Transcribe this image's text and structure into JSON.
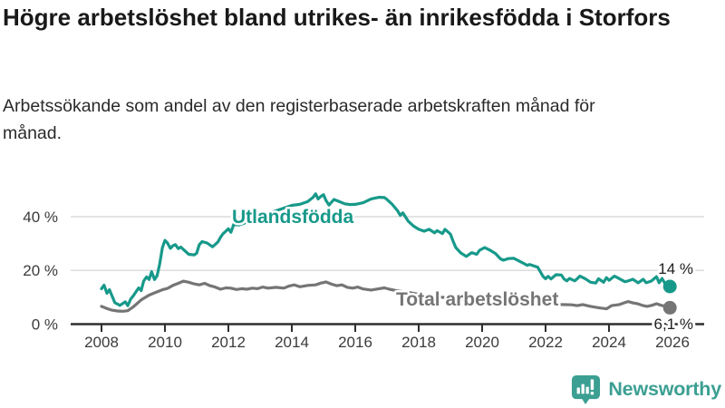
{
  "header": {
    "title": "Högre arbetslöshet bland utrikes- än inrikesfödda i Storfors",
    "subtitle": "Arbetssökande som andel av den registerbaserade arbetskraften månad för månad."
  },
  "footer": {
    "brand": "Newsworthy",
    "brand_color": "#3b9f92",
    "icon": "newsworthy-chart-bubble-icon"
  },
  "chart_data": {
    "type": "line",
    "title": "Högre arbetslöshet bland utrikes- än inrikesfödda i Storfors",
    "subtitle": "Arbetssökande som andel av den registerbaserade arbetskraften månad för månad.",
    "unit": "%",
    "grid": true,
    "x_axis": {
      "ticks": [
        2008,
        2010,
        2012,
        2014,
        2016,
        2018,
        2020,
        2022,
        2024,
        2026
      ],
      "range": [
        2007.2,
        2027
      ]
    },
    "y_axis": {
      "ticks": [
        {
          "value": 0,
          "label": "0 %"
        },
        {
          "value": 20,
          "label": "20 %"
        },
        {
          "value": 40,
          "label": "40 %"
        }
      ],
      "range": [
        0,
        50
      ]
    },
    "colors": {
      "grid": "#dcdcdc",
      "axis": "#2e2e2e"
    },
    "series": [
      {
        "name": "Utlandsfödda",
        "color": "#17998a",
        "end_label": "14 %",
        "last_value": 14,
        "points": [
          [
            2008.0,
            13.2
          ],
          [
            2008.08,
            14.5
          ],
          [
            2008.17,
            11.5
          ],
          [
            2008.25,
            12.8
          ],
          [
            2008.42,
            8.0
          ],
          [
            2008.58,
            7.0
          ],
          [
            2008.75,
            8.3
          ],
          [
            2008.83,
            6.9
          ],
          [
            2008.92,
            9.3
          ],
          [
            2009.0,
            10.5
          ],
          [
            2009.17,
            13.5
          ],
          [
            2009.25,
            12.5
          ],
          [
            2009.33,
            16.0
          ],
          [
            2009.42,
            17.6
          ],
          [
            2009.5,
            16.6
          ],
          [
            2009.58,
            19.5
          ],
          [
            2009.67,
            16.6
          ],
          [
            2009.75,
            18.0
          ],
          [
            2009.83,
            22.0
          ],
          [
            2009.92,
            28.5
          ],
          [
            2010.0,
            31.2
          ],
          [
            2010.08,
            30.2
          ],
          [
            2010.17,
            28.2
          ],
          [
            2010.25,
            29.2
          ],
          [
            2010.33,
            29.6
          ],
          [
            2010.42,
            28.1
          ],
          [
            2010.5,
            28.7
          ],
          [
            2010.58,
            27.8
          ],
          [
            2010.75,
            26.0
          ],
          [
            2010.92,
            25.8
          ],
          [
            2011.0,
            26.4
          ],
          [
            2011.08,
            29.5
          ],
          [
            2011.17,
            30.7
          ],
          [
            2011.33,
            30.2
          ],
          [
            2011.5,
            28.8
          ],
          [
            2011.58,
            29.6
          ],
          [
            2011.67,
            30.6
          ],
          [
            2011.75,
            32.3
          ],
          [
            2011.83,
            33.6
          ],
          [
            2011.92,
            34.6
          ],
          [
            2012.0,
            35.5
          ],
          [
            2012.08,
            34.2
          ],
          [
            2012.17,
            37.2
          ],
          [
            2012.33,
            36.9
          ],
          [
            2012.5,
            37.6
          ],
          [
            2012.75,
            38.7
          ],
          [
            2013.0,
            40.0
          ],
          [
            2013.25,
            41.2
          ],
          [
            2013.5,
            42.2
          ],
          [
            2013.75,
            43.2
          ],
          [
            2014.0,
            44.2
          ],
          [
            2014.25,
            44.6
          ],
          [
            2014.5,
            45.6
          ],
          [
            2014.67,
            47.2
          ],
          [
            2014.75,
            48.5
          ],
          [
            2014.83,
            46.6
          ],
          [
            2014.92,
            47.6
          ],
          [
            2015.0,
            48.2
          ],
          [
            2015.08,
            46.0
          ],
          [
            2015.17,
            44.3
          ],
          [
            2015.33,
            46.4
          ],
          [
            2015.5,
            45.6
          ],
          [
            2015.67,
            44.8
          ],
          [
            2015.83,
            44.5
          ],
          [
            2016.0,
            44.6
          ],
          [
            2016.25,
            45.2
          ],
          [
            2016.5,
            46.6
          ],
          [
            2016.75,
            47.2
          ],
          [
            2016.92,
            47.1
          ],
          [
            2017.0,
            46.4
          ],
          [
            2017.17,
            44.5
          ],
          [
            2017.33,
            42.3
          ],
          [
            2017.42,
            40.5
          ],
          [
            2017.5,
            41.4
          ],
          [
            2017.67,
            38.3
          ],
          [
            2017.83,
            36.6
          ],
          [
            2018.0,
            35.3
          ],
          [
            2018.17,
            34.6
          ],
          [
            2018.33,
            35.3
          ],
          [
            2018.5,
            34.0
          ],
          [
            2018.58,
            34.8
          ],
          [
            2018.75,
            33.7
          ],
          [
            2018.83,
            35.3
          ],
          [
            2019.0,
            33.5
          ],
          [
            2019.08,
            31.0
          ],
          [
            2019.17,
            28.5
          ],
          [
            2019.33,
            26.5
          ],
          [
            2019.5,
            25.2
          ],
          [
            2019.67,
            26.6
          ],
          [
            2019.83,
            26.0
          ],
          [
            2019.92,
            27.5
          ],
          [
            2020.08,
            28.5
          ],
          [
            2020.25,
            27.5
          ],
          [
            2020.42,
            26.3
          ],
          [
            2020.58,
            24.3
          ],
          [
            2020.67,
            23.8
          ],
          [
            2020.83,
            24.4
          ],
          [
            2021.0,
            24.5
          ],
          [
            2021.25,
            23.0
          ],
          [
            2021.42,
            21.9
          ],
          [
            2021.5,
            22.2
          ],
          [
            2021.67,
            21.5
          ],
          [
            2021.75,
            21.2
          ],
          [
            2021.92,
            17.8
          ],
          [
            2022.0,
            16.9
          ],
          [
            2022.08,
            17.8
          ],
          [
            2022.17,
            16.8
          ],
          [
            2022.33,
            18.4
          ],
          [
            2022.5,
            18.3
          ],
          [
            2022.58,
            16.8
          ],
          [
            2022.67,
            16.1
          ],
          [
            2022.75,
            17.0
          ],
          [
            2022.92,
            16.1
          ],
          [
            2023.0,
            16.9
          ],
          [
            2023.08,
            17.9
          ],
          [
            2023.25,
            16.9
          ],
          [
            2023.42,
            15.6
          ],
          [
            2023.58,
            15.3
          ],
          [
            2023.67,
            16.9
          ],
          [
            2023.83,
            15.6
          ],
          [
            2023.92,
            17.3
          ],
          [
            2024.0,
            16.3
          ],
          [
            2024.17,
            17.9
          ],
          [
            2024.33,
            16.9
          ],
          [
            2024.5,
            15.8
          ],
          [
            2024.58,
            16.0
          ],
          [
            2024.75,
            16.7
          ],
          [
            2024.92,
            15.4
          ],
          [
            2025.08,
            16.7
          ],
          [
            2025.17,
            15.4
          ],
          [
            2025.33,
            16.0
          ],
          [
            2025.5,
            17.7
          ],
          [
            2025.58,
            15.4
          ],
          [
            2025.67,
            17.0
          ],
          [
            2025.83,
            13.8
          ],
          [
            2025.92,
            14.0
          ]
        ]
      },
      {
        "name": "Total arbetslöshet",
        "color": "#757575",
        "end_label": "6,1 %",
        "last_value": 6.1,
        "points": [
          [
            2008.0,
            6.6
          ],
          [
            2008.17,
            5.8
          ],
          [
            2008.33,
            5.2
          ],
          [
            2008.5,
            4.9
          ],
          [
            2008.67,
            4.8
          ],
          [
            2008.83,
            5.0
          ],
          [
            2009.0,
            6.4
          ],
          [
            2009.25,
            9.0
          ],
          [
            2009.5,
            10.8
          ],
          [
            2009.75,
            12.0
          ],
          [
            2009.92,
            12.8
          ],
          [
            2010.08,
            13.3
          ],
          [
            2010.25,
            14.4
          ],
          [
            2010.42,
            15.2
          ],
          [
            2010.58,
            16.0
          ],
          [
            2010.75,
            15.6
          ],
          [
            2010.92,
            15.0
          ],
          [
            2011.08,
            14.6
          ],
          [
            2011.25,
            15.2
          ],
          [
            2011.42,
            14.3
          ],
          [
            2011.58,
            13.8
          ],
          [
            2011.75,
            13.0
          ],
          [
            2011.92,
            13.5
          ],
          [
            2012.08,
            13.4
          ],
          [
            2012.25,
            12.9
          ],
          [
            2012.42,
            13.2
          ],
          [
            2012.58,
            13.0
          ],
          [
            2012.75,
            13.4
          ],
          [
            2012.92,
            13.2
          ],
          [
            2013.08,
            13.8
          ],
          [
            2013.25,
            13.4
          ],
          [
            2013.5,
            13.7
          ],
          [
            2013.75,
            13.4
          ],
          [
            2013.92,
            14.2
          ],
          [
            2014.08,
            14.6
          ],
          [
            2014.25,
            13.9
          ],
          [
            2014.5,
            14.4
          ],
          [
            2014.75,
            14.6
          ],
          [
            2014.92,
            15.3
          ],
          [
            2015.08,
            15.7
          ],
          [
            2015.25,
            14.9
          ],
          [
            2015.42,
            14.3
          ],
          [
            2015.58,
            14.6
          ],
          [
            2015.75,
            13.7
          ],
          [
            2015.92,
            13.4
          ],
          [
            2016.08,
            13.8
          ],
          [
            2016.25,
            13.1
          ],
          [
            2016.5,
            12.7
          ],
          [
            2016.75,
            13.2
          ],
          [
            2016.92,
            13.5
          ],
          [
            2017.08,
            13.0
          ],
          [
            2017.33,
            12.4
          ],
          [
            2017.67,
            11.8
          ],
          [
            2018.0,
            11.1
          ],
          [
            2018.5,
            10.3
          ],
          [
            2019.0,
            9.7
          ],
          [
            2019.5,
            9.1
          ],
          [
            2020.0,
            9.6
          ],
          [
            2020.5,
            9.2
          ],
          [
            2021.0,
            8.7
          ],
          [
            2021.5,
            8.2
          ],
          [
            2022.0,
            7.7
          ],
          [
            2022.5,
            7.3
          ],
          [
            2022.83,
            7.2
          ],
          [
            2023.0,
            6.9
          ],
          [
            2023.17,
            7.3
          ],
          [
            2023.42,
            6.6
          ],
          [
            2023.67,
            6.1
          ],
          [
            2023.92,
            5.7
          ],
          [
            2024.08,
            6.9
          ],
          [
            2024.33,
            7.3
          ],
          [
            2024.5,
            8.0
          ],
          [
            2024.6,
            8.4
          ],
          [
            2024.75,
            7.9
          ],
          [
            2024.9,
            7.6
          ],
          [
            2025.05,
            7.0
          ],
          [
            2025.2,
            6.6
          ],
          [
            2025.35,
            7.0
          ],
          [
            2025.5,
            7.6
          ],
          [
            2025.65,
            7.0
          ],
          [
            2025.8,
            6.6
          ],
          [
            2025.92,
            6.1
          ]
        ]
      }
    ],
    "legend_position": "inline-labels"
  }
}
